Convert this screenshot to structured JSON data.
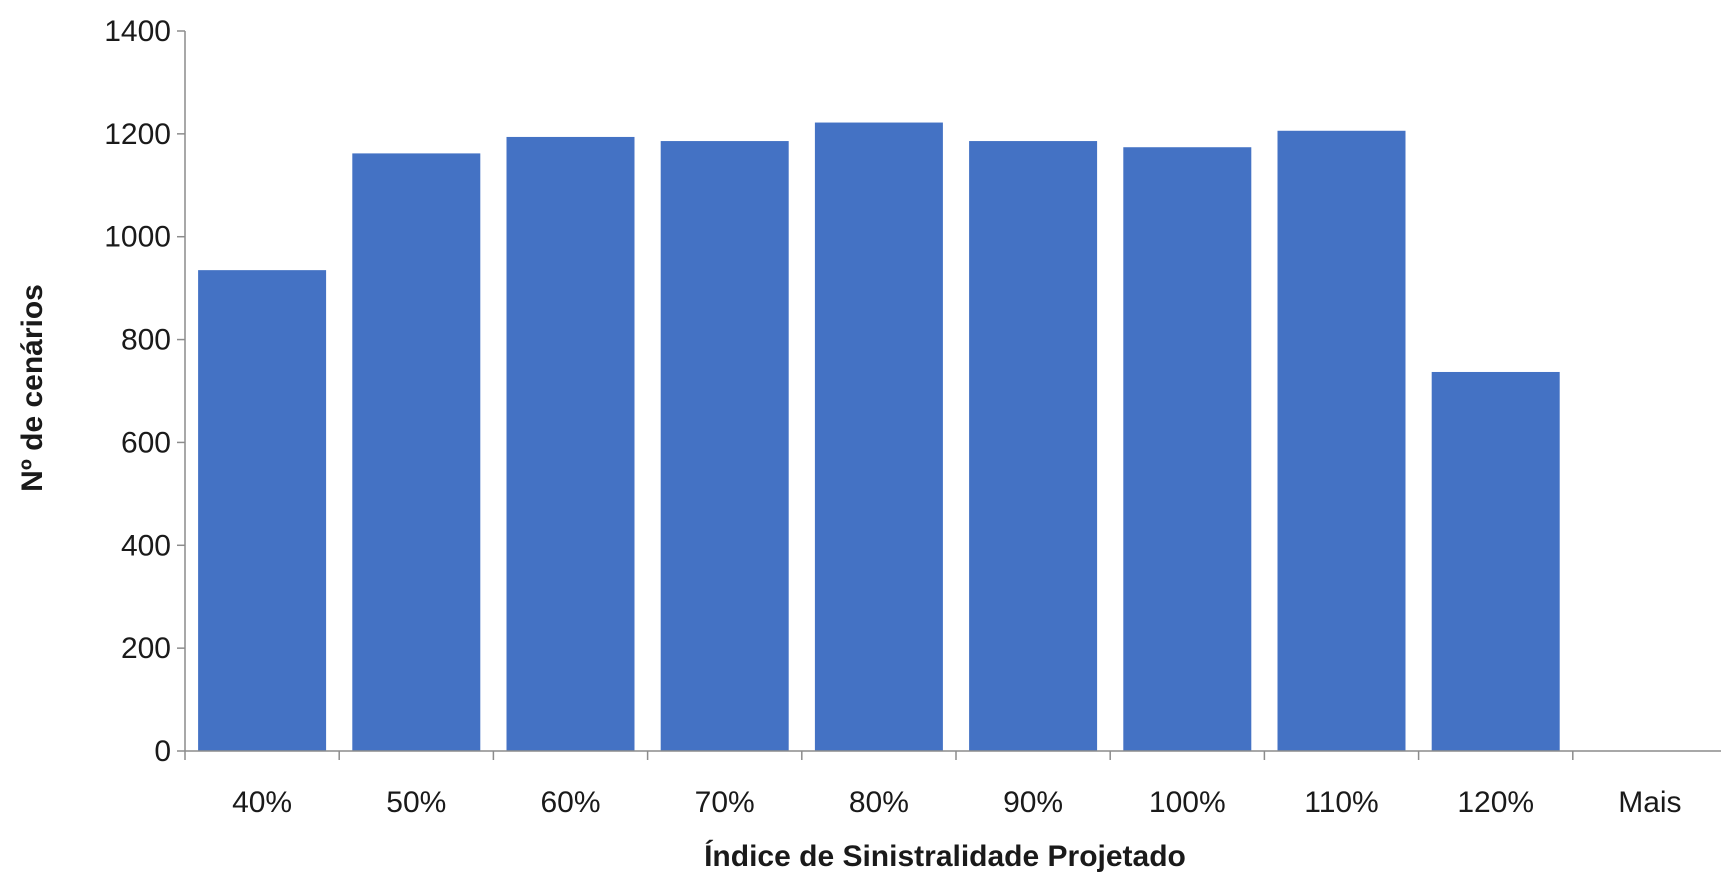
{
  "chart_data": {
    "type": "bar",
    "title": "",
    "xlabel": "Índice de Sinistralidade Projetado",
    "ylabel": "Nº de cenários",
    "categories": [
      "40%",
      "50%",
      "60%",
      "70%",
      "80%",
      "90%",
      "100%",
      "110%",
      "120%",
      "Mais"
    ],
    "values": [
      935,
      1162,
      1194,
      1186,
      1222,
      1186,
      1174,
      1206,
      737,
      0
    ],
    "ylim": [
      0,
      1400
    ],
    "yticks": [
      0,
      200,
      400,
      600,
      800,
      1000,
      1200,
      1400
    ],
    "grid": false,
    "legend": "none",
    "bar_color": "#4472C4",
    "axis_color": "#8c8c8c"
  }
}
